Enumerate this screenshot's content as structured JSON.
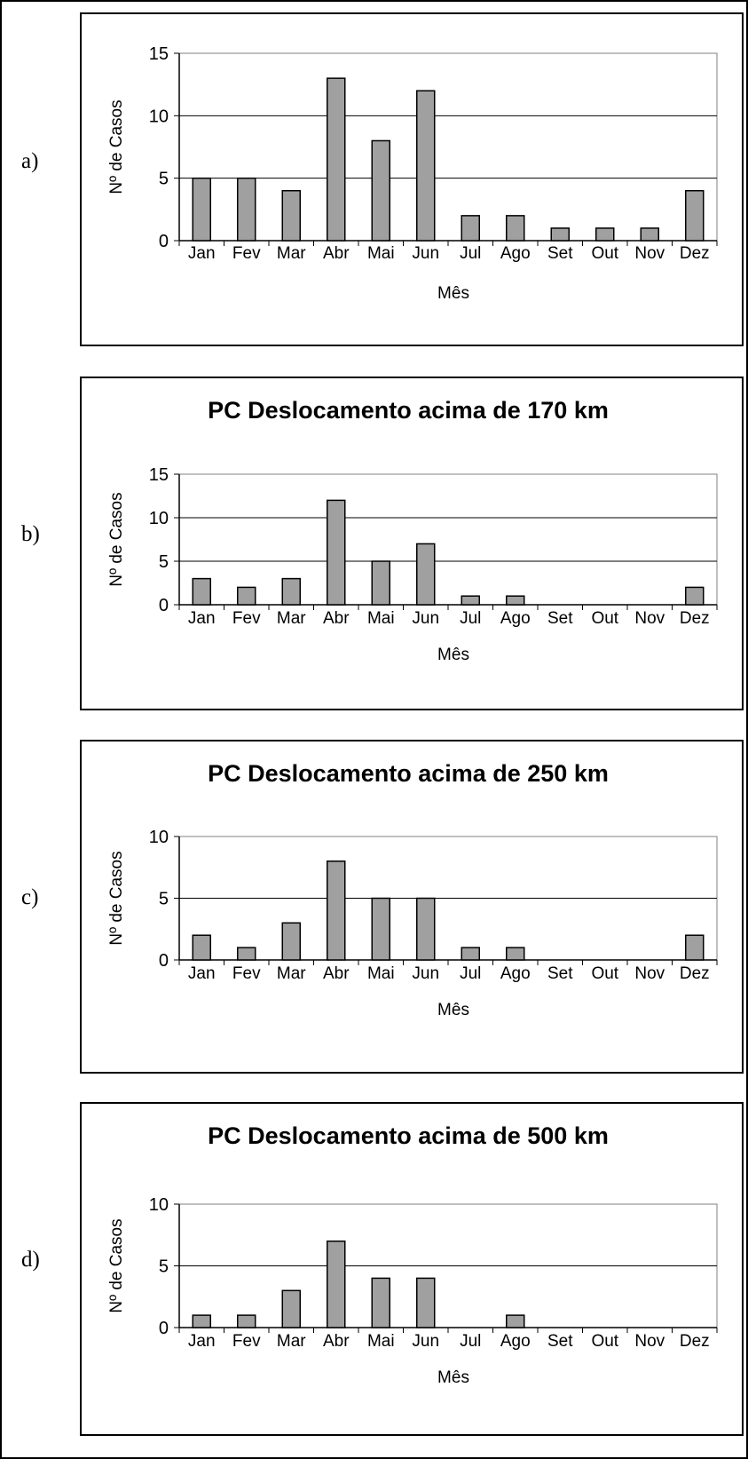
{
  "panels": [
    "a)",
    "b)",
    "c)",
    "d)"
  ],
  "chart_data": [
    {
      "type": "bar",
      "title": "",
      "xlabel": "Mês",
      "ylabel": "Nº de Casos",
      "categories": [
        "Jan",
        "Fev",
        "Mar",
        "Abr",
        "Mai",
        "Jun",
        "Jul",
        "Ago",
        "Set",
        "Out",
        "Nov",
        "Dez"
      ],
      "values": [
        5,
        5,
        4,
        13,
        8,
        12,
        2,
        2,
        1,
        1,
        1,
        4
      ],
      "ylim": [
        0,
        15
      ],
      "yticks": [
        0,
        5,
        10,
        15
      ],
      "grid": true,
      "bar_color": "#a0a0a0"
    },
    {
      "type": "bar",
      "title": "PC Deslocamento acima de 170 km",
      "xlabel": "Mês",
      "ylabel": "Nº de Casos",
      "categories": [
        "Jan",
        "Fev",
        "Mar",
        "Abr",
        "Mai",
        "Jun",
        "Jul",
        "Ago",
        "Set",
        "Out",
        "Nov",
        "Dez"
      ],
      "values": [
        3,
        2,
        3,
        12,
        5,
        7,
        1,
        1,
        0,
        0,
        0,
        2
      ],
      "ylim": [
        0,
        15
      ],
      "yticks": [
        0,
        5,
        10,
        15
      ],
      "grid": true,
      "bar_color": "#a0a0a0"
    },
    {
      "type": "bar",
      "title": "PC Deslocamento acima de 250 km",
      "xlabel": "Mês",
      "ylabel": "Nº de Casos",
      "categories": [
        "Jan",
        "Fev",
        "Mar",
        "Abr",
        "Mai",
        "Jun",
        "Jul",
        "Ago",
        "Set",
        "Out",
        "Nov",
        "Dez"
      ],
      "values": [
        2,
        1,
        3,
        8,
        5,
        5,
        1,
        1,
        0,
        0,
        0,
        2
      ],
      "ylim": [
        0,
        10
      ],
      "yticks": [
        0,
        5,
        10
      ],
      "grid": true,
      "bar_color": "#a0a0a0"
    },
    {
      "type": "bar",
      "title": "PC Deslocamento acima de 500 km",
      "xlabel": "Mês",
      "ylabel": "Nº de Casos",
      "categories": [
        "Jan",
        "Fev",
        "Mar",
        "Abr",
        "Mai",
        "Jun",
        "Jul",
        "Ago",
        "Set",
        "Out",
        "Nov",
        "Dez"
      ],
      "values": [
        1,
        1,
        3,
        7,
        4,
        4,
        0,
        1,
        0,
        0,
        0,
        0
      ],
      "ylim": [
        0,
        10
      ],
      "yticks": [
        0,
        5,
        10
      ],
      "grid": true,
      "bar_color": "#a0a0a0"
    }
  ]
}
